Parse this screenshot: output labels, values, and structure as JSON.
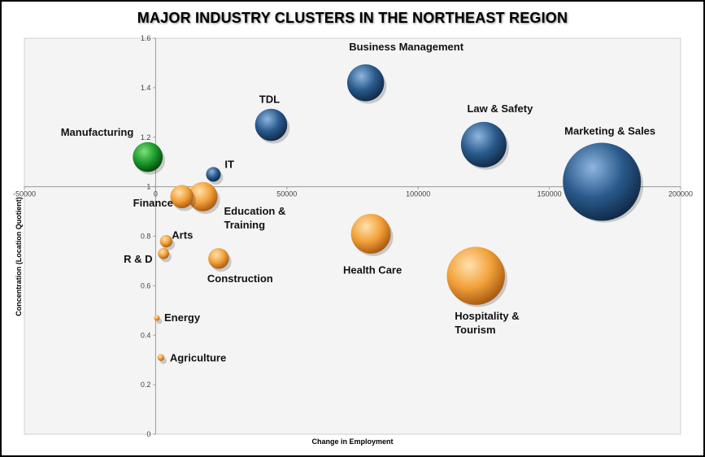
{
  "chart_data": {
    "type": "bubble",
    "title": "MAJOR INDUSTRY CLUSTERS IN THE NORTHEAST REGION",
    "xlabel": "Change in Employment",
    "ylabel": "Concentration (Location Quotient)",
    "xlim": [
      -50000,
      200000
    ],
    "ylim": [
      0,
      1.6
    ],
    "x_ticks": [
      -50000,
      0,
      50000,
      100000,
      150000,
      200000
    ],
    "x_tick_labels": [
      "-50000",
      "0",
      "50000",
      "100000",
      "150000",
      "200000"
    ],
    "y_ticks": [
      0,
      0.2,
      0.4,
      0.6,
      0.8,
      1,
      1.2,
      1.4,
      1.6
    ],
    "y_tick_labels": [
      "0",
      "0.2",
      "0.4",
      "0.6",
      "0.8",
      "1",
      "1.2",
      "1.4",
      "1.6"
    ],
    "x_axis_crosses_y": 1,
    "grid": false,
    "colors": {
      "blue": "#2a5a8c",
      "orange": "#f2a13a",
      "green": "#1a9a2a",
      "plot_background": "#f4f4f4"
    },
    "series": [
      {
        "name": "Business Management",
        "x": 80000,
        "y": 1.42,
        "size": 38000,
        "color": "blue"
      },
      {
        "name": "Law & Safety",
        "x": 125000,
        "y": 1.17,
        "size": 58000,
        "color": "blue"
      },
      {
        "name": "Marketing & Sales",
        "x": 170000,
        "y": 1.02,
        "size": 170000,
        "color": "blue"
      },
      {
        "name": "TDL",
        "x": 44000,
        "y": 1.25,
        "size": 29000,
        "color": "blue"
      },
      {
        "name": "Manufacturing",
        "x": -3000,
        "y": 1.12,
        "size": 25000,
        "color": "green"
      },
      {
        "name": "IT",
        "x": 22000,
        "y": 1.05,
        "size": 6000,
        "color": "blue"
      },
      {
        "name": "Finance",
        "x": 10000,
        "y": 0.96,
        "size": 15000,
        "color": "orange"
      },
      {
        "name": "Education & Training",
        "x": 18000,
        "y": 0.96,
        "size": 24000,
        "color": "orange"
      },
      {
        "name": "Health Care",
        "x": 82000,
        "y": 0.81,
        "size": 44000,
        "color": "orange"
      },
      {
        "name": "Hospitality & Tourism",
        "x": 122000,
        "y": 0.64,
        "size": 94000,
        "color": "orange"
      },
      {
        "name": "Arts",
        "x": 4000,
        "y": 0.78,
        "size": 4300,
        "color": "orange"
      },
      {
        "name": "R & D",
        "x": 3000,
        "y": 0.73,
        "size": 3500,
        "color": "orange"
      },
      {
        "name": "Construction",
        "x": 24000,
        "y": 0.71,
        "size": 12000,
        "color": "orange"
      },
      {
        "name": "Energy",
        "x": 500,
        "y": 0.47,
        "size": 900,
        "color": "orange"
      },
      {
        "name": "Agriculture",
        "x": 2000,
        "y": 0.31,
        "size": 1300,
        "color": "orange"
      }
    ]
  }
}
